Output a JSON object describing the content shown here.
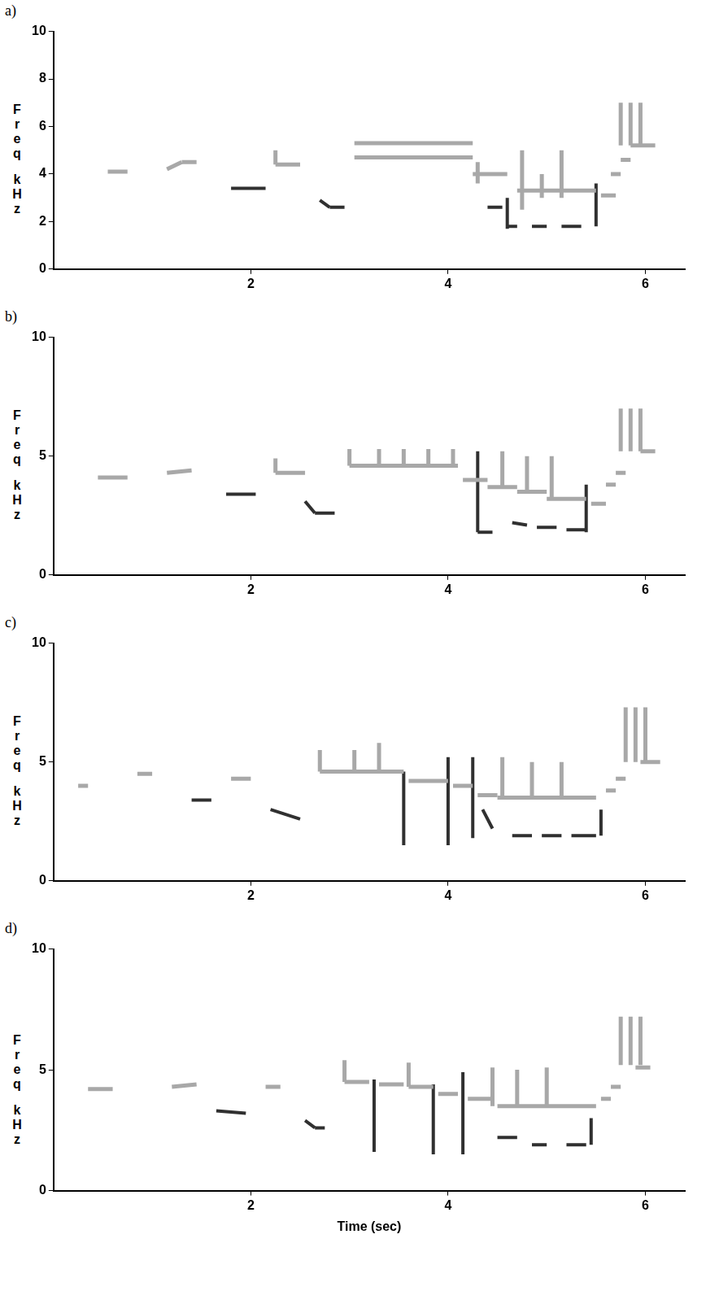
{
  "chart_data": [
    {
      "type": "line",
      "label": "a)",
      "y_label": "Freq kHz",
      "xlim": [
        0,
        6.4
      ],
      "ylim": [
        0,
        10
      ],
      "xticks": [
        2,
        4,
        6
      ],
      "yticks": [
        0,
        2,
        4,
        6,
        8,
        10
      ],
      "grid": false,
      "series": [
        {
          "color": "#a8a8a8",
          "segments": [
            [
              0.55,
              4.1,
              0.75,
              4.1
            ],
            [
              1.15,
              4.2,
              1.3,
              4.5
            ],
            [
              1.3,
              4.5,
              1.45,
              4.5
            ],
            [
              2.25,
              5.0,
              2.25,
              4.4
            ],
            [
              2.25,
              4.4,
              2.5,
              4.4
            ],
            [
              3.05,
              5.3,
              4.25,
              5.3
            ],
            [
              3.05,
              4.7,
              4.25,
              4.7
            ],
            [
              4.25,
              4.0,
              4.6,
              4.0
            ],
            [
              4.3,
              4.5,
              4.3,
              3.6
            ],
            [
              4.75,
              5.0,
              4.75,
              2.5
            ],
            [
              4.95,
              4.0,
              4.95,
              3.0
            ],
            [
              5.15,
              5.0,
              5.15,
              3.0
            ],
            [
              4.7,
              3.3,
              5.5,
              3.3
            ],
            [
              5.55,
              3.1,
              5.7,
              3.1
            ],
            [
              5.65,
              4.0,
              5.75,
              4.0
            ],
            [
              5.75,
              4.6,
              5.85,
              4.6
            ],
            [
              5.75,
              7.0,
              5.75,
              5.2
            ],
            [
              5.85,
              7.0,
              5.85,
              5.2
            ],
            [
              5.95,
              7.0,
              5.95,
              5.2
            ],
            [
              5.85,
              5.2,
              6.1,
              5.2
            ]
          ]
        },
        {
          "color": "#303030",
          "segments": [
            [
              1.8,
              3.4,
              2.15,
              3.4
            ],
            [
              2.7,
              2.9,
              2.8,
              2.6
            ],
            [
              2.8,
              2.6,
              2.95,
              2.6
            ],
            [
              4.4,
              2.6,
              4.55,
              2.6
            ],
            [
              4.6,
              3.0,
              4.6,
              1.7
            ],
            [
              4.6,
              1.8,
              4.7,
              1.8
            ],
            [
              4.85,
              1.8,
              5.0,
              1.8
            ],
            [
              5.15,
              1.8,
              5.35,
              1.8
            ],
            [
              5.5,
              3.6,
              5.5,
              1.8
            ]
          ]
        }
      ]
    },
    {
      "type": "line",
      "label": "b)",
      "y_label": "Freq kHz",
      "xlim": [
        0,
        6.4
      ],
      "ylim": [
        0,
        10
      ],
      "xticks": [
        2,
        4,
        6
      ],
      "yticks": [
        0,
        5,
        10
      ],
      "grid": false,
      "series": [
        {
          "color": "#a8a8a8",
          "segments": [
            [
              0.45,
              4.1,
              0.75,
              4.1
            ],
            [
              1.15,
              4.3,
              1.4,
              4.4
            ],
            [
              2.25,
              4.9,
              2.25,
              4.3
            ],
            [
              2.25,
              4.3,
              2.55,
              4.3
            ],
            [
              3.0,
              4.6,
              4.1,
              4.6
            ],
            [
              3.0,
              5.3,
              3.0,
              4.6
            ],
            [
              3.3,
              5.3,
              3.3,
              4.6
            ],
            [
              3.55,
              5.3,
              3.55,
              4.6
            ],
            [
              3.8,
              5.3,
              3.8,
              4.6
            ],
            [
              4.05,
              5.3,
              4.05,
              4.6
            ],
            [
              4.15,
              4.0,
              4.4,
              4.0
            ],
            [
              4.55,
              5.2,
              4.55,
              3.7
            ],
            [
              4.8,
              5.0,
              4.8,
              3.5
            ],
            [
              5.05,
              5.0,
              5.05,
              3.2
            ],
            [
              4.4,
              3.7,
              4.7,
              3.7
            ],
            [
              4.7,
              3.5,
              5.0,
              3.5
            ],
            [
              5.0,
              3.2,
              5.4,
              3.2
            ],
            [
              5.45,
              3.0,
              5.6,
              3.0
            ],
            [
              5.6,
              3.8,
              5.7,
              3.8
            ],
            [
              5.7,
              4.3,
              5.8,
              4.3
            ],
            [
              5.75,
              7.0,
              5.75,
              5.2
            ],
            [
              5.85,
              7.0,
              5.85,
              5.2
            ],
            [
              5.95,
              7.0,
              5.95,
              5.2
            ],
            [
              5.95,
              5.2,
              6.1,
              5.2
            ]
          ]
        },
        {
          "color": "#303030",
          "segments": [
            [
              1.75,
              3.4,
              2.05,
              3.4
            ],
            [
              2.55,
              3.1,
              2.65,
              2.6
            ],
            [
              2.65,
              2.6,
              2.85,
              2.6
            ],
            [
              4.3,
              5.2,
              4.3,
              1.8
            ],
            [
              4.3,
              1.8,
              4.45,
              1.8
            ],
            [
              4.65,
              2.2,
              4.8,
              2.1
            ],
            [
              4.9,
              2.0,
              5.1,
              2.0
            ],
            [
              5.2,
              1.9,
              5.4,
              1.9
            ],
            [
              5.4,
              3.8,
              5.4,
              1.8
            ]
          ]
        }
      ]
    },
    {
      "type": "line",
      "label": "c)",
      "y_label": "Freq kHz",
      "xlim": [
        0,
        6.4
      ],
      "ylim": [
        0,
        10
      ],
      "xticks": [
        2,
        4,
        6
      ],
      "yticks": [
        0,
        5,
        10
      ],
      "grid": false,
      "series": [
        {
          "color": "#a8a8a8",
          "segments": [
            [
              0.25,
              4.0,
              0.35,
              4.0
            ],
            [
              0.85,
              4.5,
              1.0,
              4.5
            ],
            [
              1.8,
              4.3,
              2.0,
              4.3
            ],
            [
              2.7,
              4.6,
              3.55,
              4.6
            ],
            [
              2.7,
              5.5,
              2.7,
              4.6
            ],
            [
              3.05,
              5.5,
              3.05,
              4.6
            ],
            [
              3.3,
              5.8,
              3.3,
              4.6
            ],
            [
              3.6,
              4.2,
              4.0,
              4.2
            ],
            [
              4.05,
              4.0,
              4.25,
              4.0
            ],
            [
              4.3,
              3.6,
              4.5,
              3.6
            ],
            [
              4.55,
              5.2,
              4.55,
              3.5
            ],
            [
              4.85,
              5.0,
              4.85,
              3.5
            ],
            [
              5.15,
              5.0,
              5.15,
              3.5
            ],
            [
              4.5,
              3.5,
              5.5,
              3.5
            ],
            [
              5.6,
              3.8,
              5.7,
              3.8
            ],
            [
              5.7,
              4.3,
              5.8,
              4.3
            ],
            [
              5.8,
              7.3,
              5.8,
              5.0
            ],
            [
              5.9,
              7.3,
              5.9,
              5.0
            ],
            [
              6.0,
              7.3,
              6.0,
              5.0
            ],
            [
              5.95,
              5.0,
              6.15,
              5.0
            ]
          ]
        },
        {
          "color": "#303030",
          "segments": [
            [
              1.4,
              3.4,
              1.6,
              3.4
            ],
            [
              2.2,
              3.0,
              2.5,
              2.6
            ],
            [
              3.55,
              4.6,
              3.55,
              1.5
            ],
            [
              4.0,
              5.2,
              4.0,
              1.5
            ],
            [
              4.25,
              5.2,
              4.25,
              1.8
            ],
            [
              4.35,
              3.0,
              4.45,
              2.2
            ],
            [
              4.65,
              1.9,
              4.85,
              1.9
            ],
            [
              4.95,
              1.9,
              5.15,
              1.9
            ],
            [
              5.25,
              1.9,
              5.5,
              1.9
            ],
            [
              5.55,
              3.0,
              5.55,
              1.9
            ]
          ]
        }
      ]
    },
    {
      "type": "line",
      "label": "d)",
      "y_label": "Freq kHz",
      "x_label": "Time (sec)",
      "xlim": [
        0,
        6.4
      ],
      "ylim": [
        0,
        10
      ],
      "xticks": [
        2,
        4,
        6
      ],
      "yticks": [
        0,
        5,
        10
      ],
      "grid": false,
      "series": [
        {
          "color": "#a8a8a8",
          "segments": [
            [
              0.35,
              4.2,
              0.6,
              4.2
            ],
            [
              1.2,
              4.3,
              1.45,
              4.4
            ],
            [
              2.15,
              4.3,
              2.3,
              4.3
            ],
            [
              2.95,
              5.4,
              2.95,
              4.5
            ],
            [
              2.95,
              4.5,
              3.2,
              4.5
            ],
            [
              3.3,
              4.4,
              3.55,
              4.4
            ],
            [
              3.6,
              5.3,
              3.6,
              4.3
            ],
            [
              3.6,
              4.3,
              3.85,
              4.3
            ],
            [
              3.9,
              4.0,
              4.1,
              4.0
            ],
            [
              4.2,
              3.8,
              4.45,
              3.8
            ],
            [
              4.45,
              5.1,
              4.45,
              3.5
            ],
            [
              4.7,
              5.0,
              4.7,
              3.5
            ],
            [
              5.0,
              5.1,
              5.0,
              3.5
            ],
            [
              4.5,
              3.5,
              5.5,
              3.5
            ],
            [
              5.55,
              3.8,
              5.65,
              3.8
            ],
            [
              5.65,
              4.3,
              5.75,
              4.3
            ],
            [
              5.75,
              7.2,
              5.75,
              5.2
            ],
            [
              5.85,
              7.2,
              5.85,
              5.2
            ],
            [
              5.95,
              7.2,
              5.95,
              5.2
            ],
            [
              5.9,
              5.1,
              6.05,
              5.1
            ]
          ]
        },
        {
          "color": "#303030",
          "segments": [
            [
              1.65,
              3.3,
              1.95,
              3.2
            ],
            [
              2.55,
              2.9,
              2.65,
              2.6
            ],
            [
              2.65,
              2.6,
              2.75,
              2.6
            ],
            [
              3.25,
              4.6,
              3.25,
              1.6
            ],
            [
              3.85,
              4.4,
              3.85,
              1.5
            ],
            [
              4.15,
              4.9,
              4.15,
              1.5
            ],
            [
              4.5,
              2.2,
              4.7,
              2.2
            ],
            [
              4.85,
              1.9,
              5.0,
              1.9
            ],
            [
              5.2,
              1.9,
              5.4,
              1.9
            ],
            [
              5.45,
              3.0,
              5.45,
              1.9
            ]
          ]
        }
      ]
    }
  ]
}
